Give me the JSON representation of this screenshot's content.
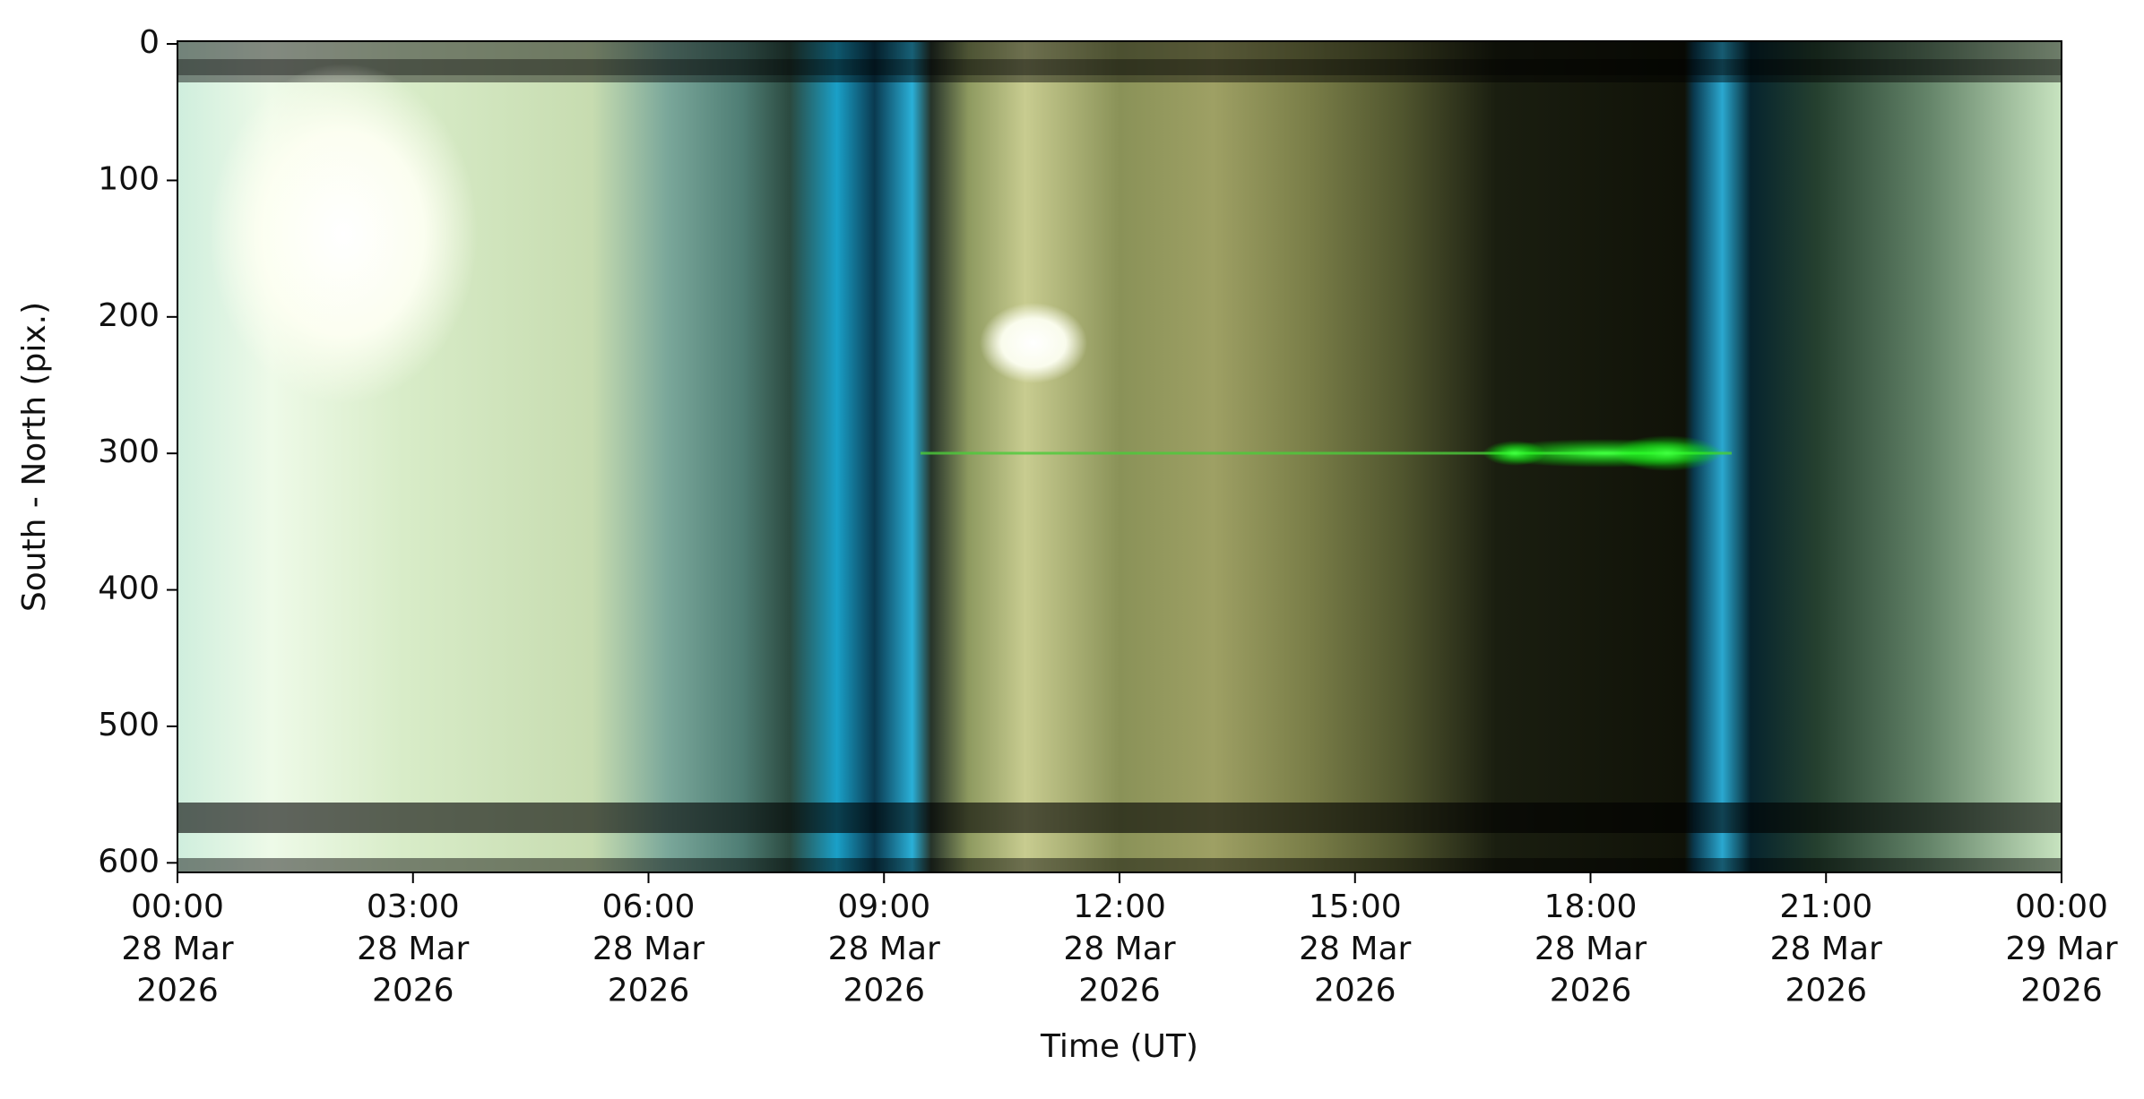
{
  "chart_data": {
    "type": "keogram",
    "xlabel": "Time (UT)",
    "ylabel": "South - North (pix.)",
    "xlim": [
      "2026-03-28T00:00",
      "2026-03-29T00:00"
    ],
    "xticks": [
      {
        "value": "2026-03-28T00:00",
        "label": "00:00\n28 Mar\n2026"
      },
      {
        "value": "2026-03-28T03:00",
        "label": "03:00\n28 Mar\n2026"
      },
      {
        "value": "2026-03-28T06:00",
        "label": "06:00\n28 Mar\n2026"
      },
      {
        "value": "2026-03-28T09:00",
        "label": "09:00\n28 Mar\n2026"
      },
      {
        "value": "2026-03-28T12:00",
        "label": "12:00\n28 Mar\n2026"
      },
      {
        "value": "2026-03-28T15:00",
        "label": "15:00\n28 Mar\n2026"
      },
      {
        "value": "2026-03-28T18:00",
        "label": "18:00\n28 Mar\n2026"
      },
      {
        "value": "2026-03-28T21:00",
        "label": "21:00\n28 Mar\n2026"
      },
      {
        "value": "2026-03-29T00:00",
        "label": "00:00\n29 Mar\n2026"
      }
    ],
    "ylim": [
      607,
      -2
    ],
    "yticks": [
      0,
      100,
      200,
      300,
      400,
      500,
      600
    ]
  }
}
